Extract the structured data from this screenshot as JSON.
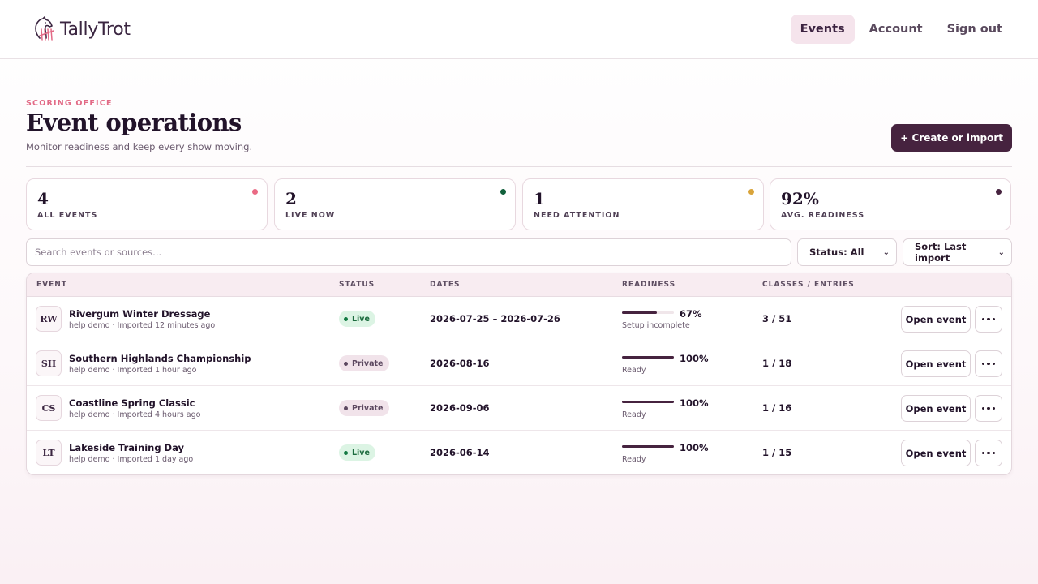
{
  "app": {
    "name": "TallyTrot",
    "logo_icon": "horse-head-tally-icon"
  },
  "nav": {
    "items": [
      {
        "label": "Events",
        "active": true
      },
      {
        "label": "Account",
        "active": false
      },
      {
        "label": "Sign out",
        "active": false
      }
    ]
  },
  "page": {
    "kicker": "SCORING OFFICE",
    "title": "Event operations",
    "subtitle": "Monitor readiness and keep every show moving.",
    "create_label": "+ Create or import"
  },
  "stats": [
    {
      "value": "4",
      "label": "ALL EVENTS",
      "dot_color": "#ea6a84"
    },
    {
      "value": "2",
      "label": "LIVE NOW",
      "dot_color": "#11603b"
    },
    {
      "value": "1",
      "label": "NEED ATTENTION",
      "dot_color": "#d9a43a"
    },
    {
      "value": "92%",
      "label": "AVG. READINESS",
      "dot_color": "#46233f"
    }
  ],
  "filters": {
    "search_placeholder": "Search events or sources...",
    "status_label": "Status: All",
    "sort_label": "Sort: Last import"
  },
  "table": {
    "headers": [
      "EVENT",
      "STATUS",
      "DATES",
      "READINESS",
      "CLASSES / ENTRIES"
    ],
    "open_label": "Open event",
    "rows": [
      {
        "initials": "RW",
        "name": "Rivergum Winter Dressage",
        "meta": "help demo · Imported 12 minutes ago",
        "status": "Live",
        "dates": "2026-07-25 – 2026-07-26",
        "readiness": 67,
        "readiness_label": "67%",
        "state": "Setup incomplete",
        "classes_entries": "3 / 51"
      },
      {
        "initials": "SH",
        "name": "Southern Highlands Championship",
        "meta": "help demo · Imported 1 hour ago",
        "status": "Private",
        "dates": "2026-08-16",
        "readiness": 100,
        "readiness_label": "100%",
        "state": "Ready",
        "classes_entries": "1 / 18"
      },
      {
        "initials": "CS",
        "name": "Coastline Spring Classic",
        "meta": "help demo · Imported 4 hours ago",
        "status": "Private",
        "dates": "2026-09-06",
        "readiness": 100,
        "readiness_label": "100%",
        "state": "Ready",
        "classes_entries": "1 / 16"
      },
      {
        "initials": "LT",
        "name": "Lakeside Training Day",
        "meta": "help demo · Imported 1 day ago",
        "status": "Live",
        "dates": "2026-06-14",
        "readiness": 100,
        "readiness_label": "100%",
        "state": "Ready",
        "classes_entries": "1 / 15"
      }
    ]
  },
  "colors": {
    "accent": "#46233f",
    "kicker": "#e26a86",
    "live": "#137a42"
  }
}
